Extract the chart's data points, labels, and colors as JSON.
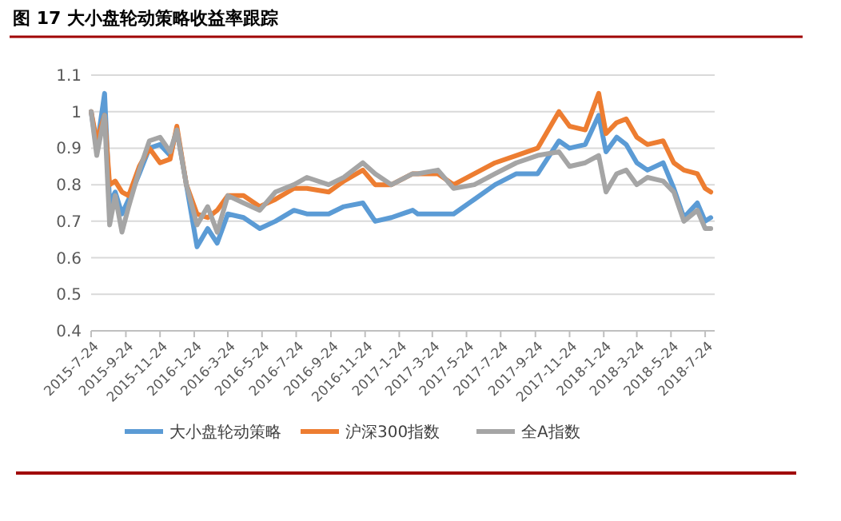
{
  "chart_data": {
    "type": "line",
    "title": "图 17    大小盘轮动策略收益率跟踪",
    "x": [
      "2015-07-24",
      "2015-08-03",
      "2015-08-17",
      "2015-08-26",
      "2015-09-05",
      "2015-09-17",
      "2015-09-29",
      "2015-10-18",
      "2015-11-05",
      "2015-11-24",
      "2015-12-12",
      "2015-12-24",
      "2016-01-10",
      "2016-01-29",
      "2016-02-17",
      "2016-03-05",
      "2016-03-24",
      "2016-04-21",
      "2016-05-20",
      "2016-06-17",
      "2016-07-20",
      "2016-08-12",
      "2016-09-20",
      "2016-10-17",
      "2016-11-20",
      "2016-12-12",
      "2017-01-10",
      "2017-02-17",
      "2017-02-26",
      "2017-04-03",
      "2017-05-01",
      "2017-06-07",
      "2017-07-14",
      "2017-08-21",
      "2017-09-28",
      "2017-11-05",
      "2017-11-24",
      "2017-12-22",
      "2018-01-15",
      "2018-01-28",
      "2018-02-16",
      "2018-03-05",
      "2018-03-24",
      "2018-04-12",
      "2018-05-10",
      "2018-05-29",
      "2018-06-16",
      "2018-07-10",
      "2018-07-24",
      "2018-08-03"
    ],
    "series": [
      {
        "name": "大小盘轮动策略",
        "color": "#5b9bd5",
        "values": [
          1.0,
          0.9,
          1.05,
          0.75,
          0.78,
          0.72,
          0.76,
          0.83,
          0.9,
          0.91,
          0.88,
          0.95,
          0.8,
          0.63,
          0.68,
          0.64,
          0.72,
          0.71,
          0.68,
          0.7,
          0.73,
          0.72,
          0.72,
          0.74,
          0.75,
          0.7,
          0.71,
          0.73,
          0.72,
          0.72,
          0.72,
          0.76,
          0.8,
          0.83,
          0.83,
          0.92,
          0.9,
          0.91,
          0.99,
          0.89,
          0.93,
          0.91,
          0.86,
          0.84,
          0.86,
          0.79,
          0.71,
          0.75,
          0.7,
          0.71
        ]
      },
      {
        "name": "沪深300指数",
        "color": "#ed7d31",
        "values": [
          1.0,
          0.92,
          0.99,
          0.8,
          0.81,
          0.78,
          0.77,
          0.85,
          0.9,
          0.86,
          0.87,
          0.96,
          0.8,
          0.72,
          0.71,
          0.73,
          0.77,
          0.77,
          0.74,
          0.76,
          0.79,
          0.79,
          0.78,
          0.81,
          0.84,
          0.8,
          0.8,
          0.83,
          0.83,
          0.83,
          0.8,
          0.83,
          0.86,
          0.88,
          0.9,
          1.0,
          0.96,
          0.95,
          1.05,
          0.94,
          0.97,
          0.98,
          0.93,
          0.91,
          0.92,
          0.86,
          0.84,
          0.83,
          0.79,
          0.78
        ]
      },
      {
        "name": "全A指数",
        "color": "#a5a5a5",
        "values": [
          1.0,
          0.88,
          0.99,
          0.69,
          0.77,
          0.67,
          0.74,
          0.84,
          0.92,
          0.93,
          0.89,
          0.95,
          0.8,
          0.69,
          0.74,
          0.67,
          0.77,
          0.75,
          0.73,
          0.78,
          0.8,
          0.82,
          0.8,
          0.82,
          0.86,
          0.83,
          0.8,
          0.83,
          0.83,
          0.84,
          0.79,
          0.8,
          0.83,
          0.86,
          0.88,
          0.89,
          0.85,
          0.86,
          0.88,
          0.78,
          0.83,
          0.84,
          0.8,
          0.82,
          0.81,
          0.78,
          0.7,
          0.73,
          0.68,
          0.68
        ]
      }
    ],
    "xlim": [
      "2015-07-24",
      "2018-08-10"
    ],
    "xticks": [
      {
        "value": "2015-07-24",
        "label": "2015-7-24"
      },
      {
        "value": "2015-09-24",
        "label": "2015-9-24"
      },
      {
        "value": "2015-11-24",
        "label": "2015-11-24"
      },
      {
        "value": "2016-01-24",
        "label": "2016-1-24"
      },
      {
        "value": "2016-03-24",
        "label": "2016-3-24"
      },
      {
        "value": "2016-05-24",
        "label": "2016-5-24"
      },
      {
        "value": "2016-07-24",
        "label": "2016-7-24"
      },
      {
        "value": "2016-09-24",
        "label": "2016-9-24"
      },
      {
        "value": "2016-11-24",
        "label": "2016-11-24"
      },
      {
        "value": "2017-01-24",
        "label": "2017-1-24"
      },
      {
        "value": "2017-03-24",
        "label": "2017-3-24"
      },
      {
        "value": "2017-05-24",
        "label": "2017-5-24"
      },
      {
        "value": "2017-07-24",
        "label": "2017-7-24"
      },
      {
        "value": "2017-09-24",
        "label": "2017-9-24"
      },
      {
        "value": "2017-11-24",
        "label": "2017-11-24"
      },
      {
        "value": "2018-01-24",
        "label": "2018-1-24"
      },
      {
        "value": "2018-03-24",
        "label": "2018-3-24"
      },
      {
        "value": "2018-05-24",
        "label": "2018-5-24"
      },
      {
        "value": "2018-07-24",
        "label": "2018-7-24"
      }
    ],
    "ylim": [
      0.4,
      1.1
    ],
    "yticks": [
      0.4,
      0.5,
      0.6,
      0.7,
      0.8,
      0.9,
      1,
      1.1
    ],
    "grid": "y",
    "legend": "bottom",
    "marker": "none",
    "line_style": "solid"
  }
}
